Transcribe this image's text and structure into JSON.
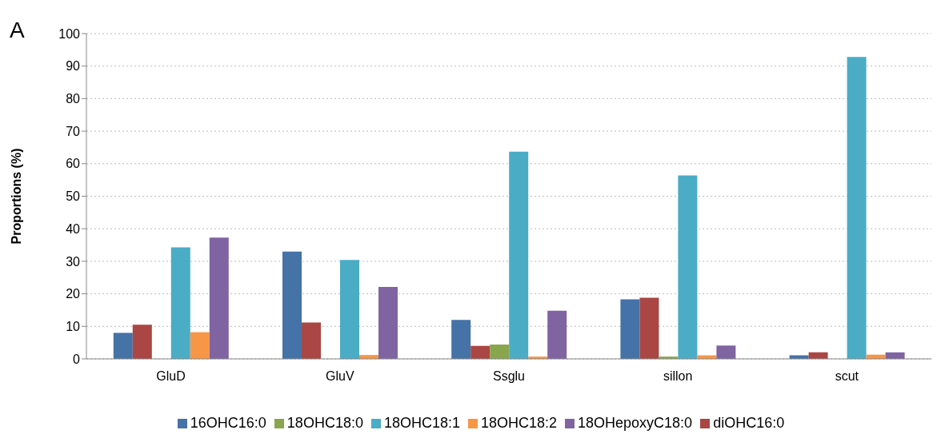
{
  "chart_data": {
    "type": "bar",
    "ylabel": "Proportions (%)",
    "annotations": [
      "A"
    ],
    "categories": [
      "GluD",
      "GluV",
      "Ssglu",
      "sillon",
      "scut"
    ],
    "series": [
      {
        "name": "16OHC16:0",
        "color": "#4572a7",
        "values": [
          8.0,
          33.0,
          12.0,
          18.3,
          1.1
        ]
      },
      {
        "name": "diOHC16:0",
        "color": "#aa4643",
        "values": [
          10.5,
          11.2,
          4.0,
          18.8,
          2.0
        ]
      },
      {
        "name": "18OHC18:0",
        "color": "#89a54e",
        "values": [
          null,
          null,
          4.4,
          0.7,
          null
        ]
      },
      {
        "name": "18OHC18:1",
        "color": "#4bacc6",
        "values": [
          34.3,
          30.4,
          63.7,
          56.4,
          92.8
        ]
      },
      {
        "name": "18OHC18:2",
        "color": "#f79646",
        "values": [
          8.2,
          1.2,
          0.7,
          1.1,
          1.3
        ]
      },
      {
        "name": "18OHepoxyC18:0",
        "color": "#8064a2",
        "values": [
          37.3,
          22.1,
          14.8,
          4.1,
          2.0
        ]
      }
    ],
    "ylim": [
      0,
      100
    ],
    "yticks": [
      0,
      10,
      20,
      30,
      40,
      50,
      60,
      70,
      80,
      90,
      100
    ],
    "grid": "y",
    "legend": "bottom"
  }
}
